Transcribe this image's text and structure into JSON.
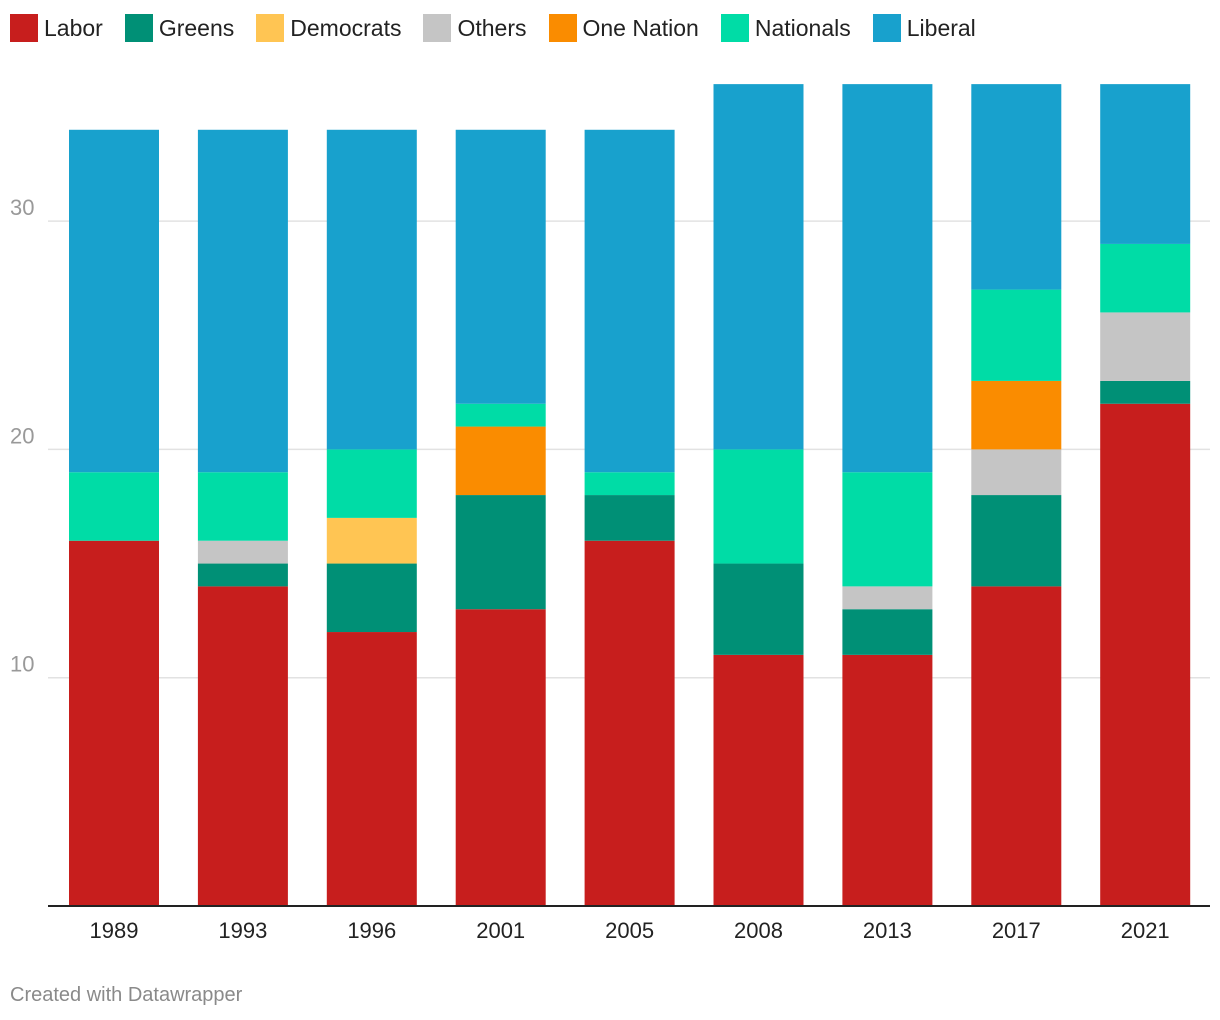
{
  "chart_data": {
    "type": "bar",
    "stacked": true,
    "categories": [
      "1989",
      "1993",
      "1996",
      "2001",
      "2005",
      "2008",
      "2013",
      "2017",
      "2021"
    ],
    "series": [
      {
        "name": "Labor",
        "color": "#c71e1d",
        "values": [
          16,
          14,
          12,
          13,
          16,
          11,
          11,
          14,
          22
        ]
      },
      {
        "name": "Greens",
        "color": "#009076",
        "values": [
          0,
          1,
          3,
          5,
          2,
          4,
          2,
          4,
          1
        ]
      },
      {
        "name": "Democrats",
        "color": "#ffc553",
        "values": [
          0,
          0,
          2,
          0,
          0,
          0,
          0,
          0,
          0
        ]
      },
      {
        "name": "Others",
        "color": "#c5c5c5",
        "values": [
          0,
          1,
          0,
          0,
          0,
          0,
          1,
          2,
          3
        ]
      },
      {
        "name": "One Nation",
        "color": "#fa8c00",
        "values": [
          0,
          0,
          0,
          3,
          0,
          0,
          0,
          3,
          0
        ]
      },
      {
        "name": "Nationals",
        "color": "#00dca6",
        "values": [
          3,
          3,
          3,
          1,
          1,
          5,
          5,
          4,
          3
        ]
      },
      {
        "name": "Liberal",
        "color": "#18a1cd",
        "values": [
          15,
          15,
          14,
          12,
          15,
          16,
          17,
          9,
          7
        ]
      }
    ],
    "legend_order": [
      "Labor",
      "Greens",
      "Democrats",
      "Others",
      "One Nation",
      "Nationals",
      "Liberal"
    ],
    "yticks": [
      10,
      20,
      30
    ],
    "ylim": [
      0,
      36
    ],
    "title": "",
    "xlabel": "",
    "ylabel": "",
    "grid": true,
    "legend_position": "top-left"
  },
  "footer": {
    "credit": "Created with Datawrapper"
  }
}
